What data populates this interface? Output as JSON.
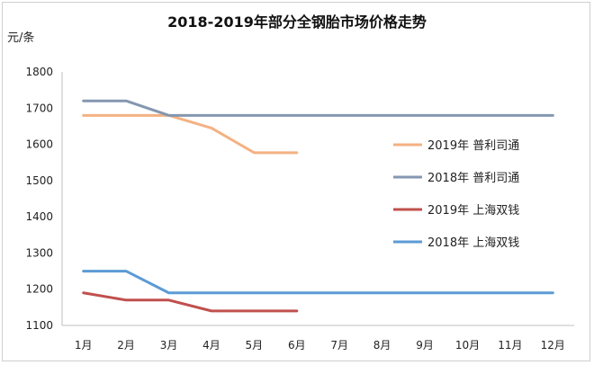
{
  "chart_data": {
    "type": "line",
    "title": "2018-2019年部分全钢胎市场价格走势",
    "ylabel": "元/条",
    "xlabel": "",
    "categories": [
      "1月",
      "2月",
      "3月",
      "4月",
      "5月",
      "6月",
      "7月",
      "8月",
      "9月",
      "10月",
      "11月",
      "12月"
    ],
    "ylim": [
      1100,
      1800
    ],
    "yticks": [
      1100,
      1200,
      1300,
      1400,
      1500,
      1600,
      1700,
      1800
    ],
    "grid": false,
    "legend_position": "right",
    "series": [
      {
        "name": "2019年  普利司通",
        "color": "#f4b183",
        "values": [
          1680,
          1680,
          1680,
          1645,
          1577,
          1577,
          null,
          null,
          null,
          null,
          null,
          null
        ]
      },
      {
        "name": "2018年  普利司通",
        "color": "#8497b0",
        "values": [
          1720,
          1720,
          1680,
          1680,
          1680,
          1680,
          1680,
          1680,
          1680,
          1680,
          1680,
          1680
        ]
      },
      {
        "name": "2019年  上海双钱",
        "color": "#c0504d",
        "values": [
          1190,
          1170,
          1170,
          1140,
          1140,
          1140,
          null,
          null,
          null,
          null,
          null,
          null
        ]
      },
      {
        "name": "2018年  上海双钱",
        "color": "#5b9bd5",
        "values": [
          1250,
          1250,
          1190,
          1190,
          1190,
          1190,
          1190,
          1190,
          1190,
          1190,
          1190,
          1190
        ]
      }
    ]
  }
}
